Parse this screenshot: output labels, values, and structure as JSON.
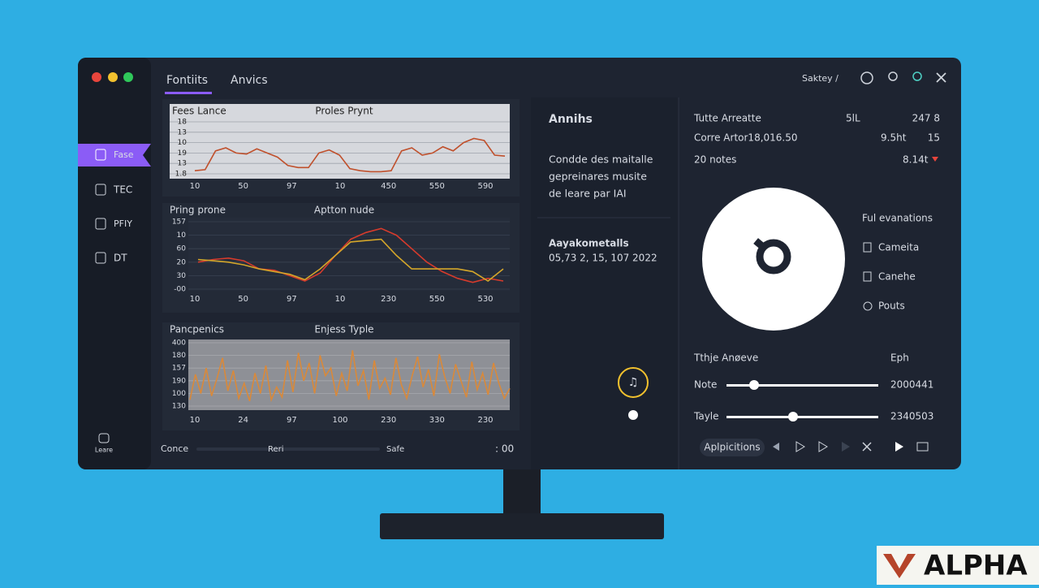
{
  "window": {
    "tabs": [
      "Fontiits",
      "Anvics"
    ],
    "top_right": "Saktey /"
  },
  "sidebar": {
    "items": [
      "Fase",
      "TEC",
      "PFIY",
      "DT"
    ],
    "bottom": "Leare"
  },
  "charts": [
    {
      "type": "line",
      "title": "Fees Lance",
      "subtitle": "Proles Prynt",
      "ylim": [
        0,
        5
      ],
      "yticks": [
        {
          "value": 5,
          "label": "18"
        },
        {
          "value": 4,
          "label": "13"
        },
        {
          "value": 3,
          "label": "10"
        },
        {
          "value": 2,
          "label": "19"
        },
        {
          "value": 1,
          "label": "13"
        },
        {
          "value": 0,
          "label": "1.8"
        }
      ],
      "xticks": [
        "10",
        "50",
        "97",
        "10",
        "450",
        "550",
        "590"
      ],
      "series": [
        {
          "color": "#c0502c",
          "values": [
            0.3,
            0.4,
            2.2,
            2.5,
            2.0,
            1.9,
            2.4,
            2.0,
            1.6,
            0.8,
            0.6,
            0.6,
            2.0,
            2.3,
            1.8,
            0.5,
            0.3,
            0.2,
            0.2,
            0.3,
            2.2,
            2.5,
            1.8,
            2.0,
            2.6,
            2.2,
            3.0,
            3.4,
            3.2,
            1.8,
            1.7
          ]
        }
      ]
    },
    {
      "type": "line",
      "title": "Pring prone",
      "subtitle": "Aptton nude",
      "ylim": [
        0,
        5
      ],
      "yticks": [
        {
          "value": 5,
          "label": "157"
        },
        {
          "value": 4,
          "label": "10"
        },
        {
          "value": 3,
          "label": "60"
        },
        {
          "value": 2,
          "label": "20"
        },
        {
          "value": 1,
          "label": "30"
        },
        {
          "value": 0,
          "label": "-00"
        }
      ],
      "xticks": [
        "10",
        "50",
        "97",
        "10",
        "230",
        "550",
        "530"
      ],
      "series": [
        {
          "color": "#d63b2c",
          "values": [
            2.0,
            2.2,
            2.3,
            2.1,
            1.5,
            1.4,
            1.0,
            0.6,
            1.2,
            2.5,
            3.7,
            4.2,
            4.5,
            4.0,
            3.0,
            2.0,
            1.3,
            0.8,
            0.5,
            0.8,
            0.6
          ]
        },
        {
          "color": "#d4a62a",
          "values": [
            2.2,
            2.1,
            2.0,
            1.8,
            1.5,
            1.3,
            1.1,
            0.7,
            1.5,
            2.5,
            3.5,
            3.6,
            3.7,
            2.5,
            1.5,
            1.5,
            1.5,
            1.5,
            1.3,
            0.6,
            1.5
          ]
        }
      ]
    },
    {
      "type": "line",
      "title": "Pancpenics",
      "subtitle": "Enjess Typle",
      "ylim": [
        0,
        5
      ],
      "yticks": [
        {
          "value": 5,
          "label": "400"
        },
        {
          "value": 4,
          "label": "180"
        },
        {
          "value": 3,
          "label": "157"
        },
        {
          "value": 2,
          "label": "190"
        },
        {
          "value": 1,
          "label": "100"
        },
        {
          "value": 0,
          "label": "130"
        }
      ],
      "xticks": [
        "10",
        "24",
        "97",
        "100",
        "230",
        "330",
        "230"
      ],
      "series": [
        {
          "color": "#d9893a",
          "values": [
            0.5,
            2.5,
            1.0,
            3.0,
            0.8,
            2.2,
            3.8,
            1.2,
            2.8,
            0.6,
            1.8,
            0.4,
            2.6,
            1.0,
            3.2,
            0.5,
            1.5,
            0.7,
            3.6,
            1.1,
            4.2,
            2.0,
            3.4,
            1.0,
            4.0,
            2.4,
            3.0,
            0.8,
            2.6,
            1.2,
            4.4,
            1.6,
            2.8,
            0.5,
            3.6,
            1.4,
            2.2,
            0.9,
            3.8,
            1.7,
            0.6,
            2.4,
            3.9,
            1.5,
            2.9,
            0.8,
            4.1,
            2.3,
            1.0,
            3.3,
            2.0,
            0.7,
            3.5,
            1.3,
            2.6,
            0.9,
            3.4,
            1.8,
            0.6,
            1.4
          ]
        }
      ]
    }
  ],
  "bottom_bar": {
    "left": "Conce",
    "mid": "Reri",
    "right": "Safe",
    "end": ": 00"
  },
  "middle": {
    "title": "Annihs",
    "paragraph": [
      "Condde des maitalle",
      "gepreinares musite",
      "de leare par IAI"
    ],
    "subtitle": "Aayakometalls",
    "date": "05,73 2, 15, 107 2022"
  },
  "right": {
    "rows": [
      [
        "Tutte Arreatte",
        "5lL",
        "247 8"
      ],
      [
        "Corre Artor18,016.50",
        "9.5ht",
        "15"
      ],
      [
        "20 notes",
        "8.14t"
      ]
    ],
    "list_title": "Ful evanations",
    "list": [
      "Cameita",
      "Canehe",
      "Pouts"
    ],
    "section": "Tthje Anøeve",
    "section_right": "Eph",
    "sliders": [
      {
        "label": "Note",
        "value": "2000441"
      },
      {
        "label": "Tayle",
        "value": "2340503"
      }
    ],
    "button": "Aplpicitions"
  },
  "watermark": "ALPHA"
}
